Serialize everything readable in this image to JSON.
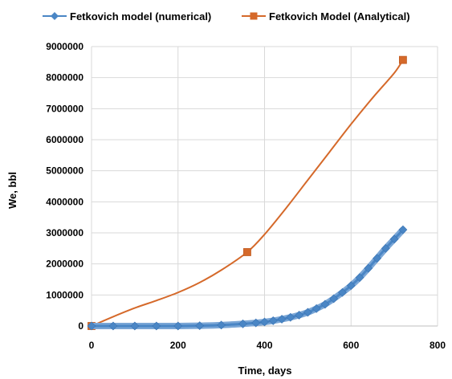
{
  "chart_data": {
    "type": "line",
    "xlabel": "Time, days",
    "ylabel": "We, bbl",
    "xlim": [
      0,
      800
    ],
    "ylim": [
      0,
      9000000
    ],
    "xticks": [
      0,
      200,
      400,
      600,
      800
    ],
    "yticks": [
      0,
      1000000,
      2000000,
      3000000,
      4000000,
      5000000,
      6000000,
      7000000,
      8000000,
      9000000
    ],
    "xtick_labels": [
      "0",
      "200",
      "400",
      "600",
      "800"
    ],
    "ytick_labels": [
      "0",
      "1000000",
      "2000000",
      "3000000",
      "4000000",
      "5000000",
      "6000000",
      "7000000",
      "8000000",
      "9000000"
    ],
    "grid": true,
    "legend_position": "top",
    "series": [
      {
        "name": "Fetkovich model (numerical)",
        "color": "#4a86c5",
        "marker": "diamond",
        "x": [
          0,
          50,
          100,
          150,
          200,
          250,
          300,
          350,
          380,
          400,
          420,
          440,
          460,
          480,
          500,
          520,
          540,
          560,
          580,
          600,
          620,
          640,
          660,
          680,
          700,
          720
        ],
        "y": [
          0,
          0,
          0,
          0,
          0,
          10000,
          30000,
          70000,
          100000,
          130000,
          170000,
          220000,
          280000,
          350000,
          440000,
          560000,
          700000,
          880000,
          1080000,
          1300000,
          1560000,
          1860000,
          2180000,
          2500000,
          2800000,
          3100000
        ]
      },
      {
        "name": "Fetkovich Model (Analytical)",
        "color": "#d5692a",
        "marker": "square",
        "x": [
          0,
          360,
          720
        ],
        "y": [
          0,
          2380000,
          8570000
        ],
        "curve": {
          "x": [
            0,
            50,
            100,
            150,
            200,
            250,
            300,
            360,
            400,
            450,
            500,
            550,
            600,
            650,
            700,
            720
          ],
          "y": [
            0,
            300000,
            580000,
            820000,
            1080000,
            1400000,
            1800000,
            2380000,
            2950000,
            3800000,
            4700000,
            5600000,
            6500000,
            7350000,
            8150000,
            8570000
          ]
        }
      }
    ]
  }
}
